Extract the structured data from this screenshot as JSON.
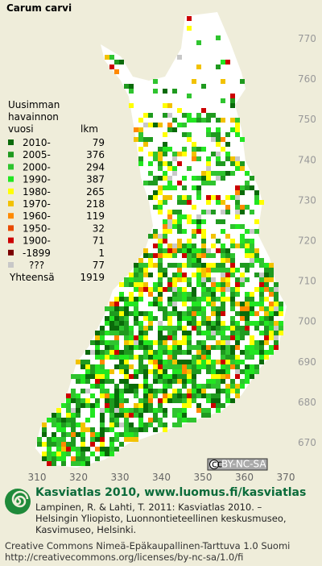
{
  "title": "Carum carvi",
  "legend": {
    "heading": [
      "Uusimman",
      "havainnon",
      "vuosi"
    ],
    "count_heading": "lkm",
    "items": [
      {
        "label": "2010-",
        "count": 79,
        "color": "#0a6a0a"
      },
      {
        "label": "2005-",
        "count": 376,
        "color": "#1f9a1f"
      },
      {
        "label": "2000-",
        "count": 294,
        "color": "#2fc42f"
      },
      {
        "label": "1990-",
        "count": 387,
        "color": "#22e622"
      },
      {
        "label": "1980-",
        "count": 265,
        "color": "#ffff00"
      },
      {
        "label": "1970-",
        "count": 218,
        "color": "#f2c200"
      },
      {
        "label": "1960-",
        "count": 119,
        "color": "#ff8a00"
      },
      {
        "label": "1950-",
        "count": 32,
        "color": "#e84a00"
      },
      {
        "label": "1900-",
        "count": 71,
        "color": "#cc0000"
      },
      {
        "label": "-1899",
        "count": 1,
        "color": "#7a0000"
      },
      {
        "label": "???",
        "count": 77,
        "color": "#c8c8c8"
      }
    ],
    "total_label": "Yhteensä",
    "total": 1919
  },
  "axes": {
    "xticks": [
      310,
      320,
      330,
      340,
      350,
      360,
      370
    ],
    "yticks": [
      670,
      680,
      690,
      700,
      710,
      720,
      730,
      740,
      750,
      760,
      770
    ]
  },
  "license_badge": "BY-NC-SA",
  "footer": {
    "site": "Kasviatlas 2010, www.luomus.fi/kasviatlas",
    "citation": [
      "Lampinen, R. & Lahti, T. 2011: Kasviatlas 2010. –",
      "Helsingin Yliopisto, Luonnontieteellinen keskusmuseo,",
      "Kasvimuseo, Helsinki."
    ],
    "license": [
      "Creative Commons Nimeä-Epäkaupallinen-Tarttuva 1.0 Suomi",
      "http://creativecommons.org/licenses/by-nc-sa/1.0/fi"
    ]
  }
}
